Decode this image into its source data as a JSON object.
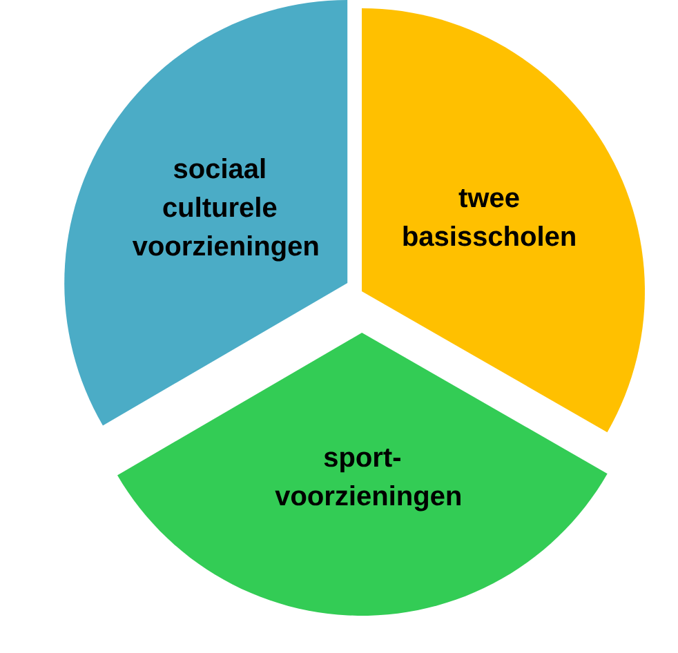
{
  "chart_data": {
    "type": "pie",
    "categories": [
      "twee basisscholen",
      "sport-voorzieningen",
      "sociaal culturele voorzieningen"
    ],
    "values": [
      33.3,
      33.3,
      33.4
    ],
    "colors": [
      "#ffc000",
      "#33cc55",
      "#4bacc6"
    ]
  }
}
